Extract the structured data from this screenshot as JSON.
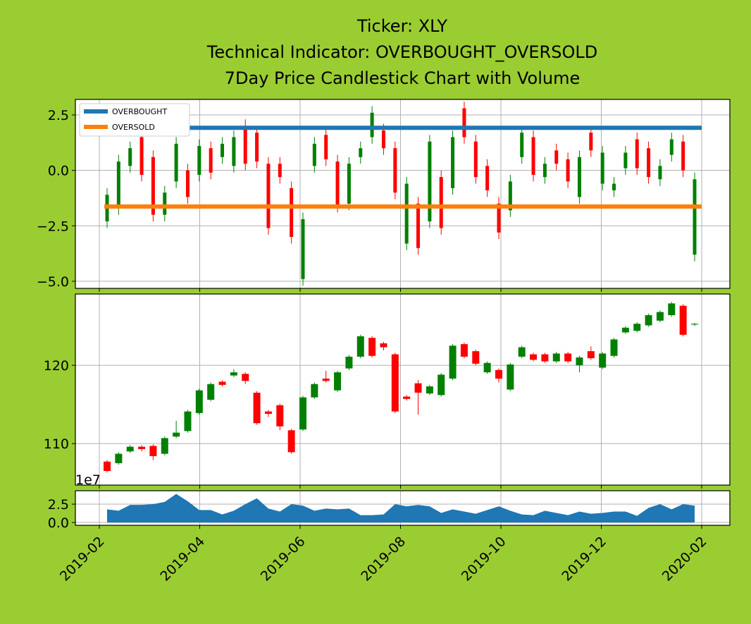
{
  "chart_data": [
    {
      "type": "candlestick",
      "title": [
        "Ticker: XLY",
        "Technical Indicator: OVERBOUGHT_OVERSOLD",
        "7Day Price Candlestick Chart with Volume"
      ],
      "open": [
        -2.3,
        -1.7,
        0.2,
        1.5,
        0.6,
        -2.0,
        -0.5,
        0.0,
        -0.2,
        1.0,
        0.6,
        0.2,
        2.0,
        1.7,
        0.3,
        0.3,
        -0.8,
        -4.9,
        0.2,
        1.6,
        0.4,
        -1.5,
        0.6,
        1.5,
        1.8,
        1.0,
        -3.3,
        -1.5,
        -2.3,
        -0.3,
        -0.8,
        2.8,
        1.3,
        0.2,
        -1.5,
        -1.8,
        0.6,
        1.5,
        -0.3,
        0.9,
        0.5,
        -1.2,
        1.7,
        -0.6,
        -0.9,
        0.1,
        1.4,
        1.0,
        -0.4,
        0.7,
        1.3,
        -3.8
      ],
      "high": [
        -0.8,
        0.7,
        1.3,
        1.8,
        0.9,
        -0.7,
        1.5,
        0.3,
        1.4,
        1.3,
        1.5,
        1.8,
        2.3,
        2.0,
        0.6,
        0.6,
        -0.5,
        -1.9,
        1.5,
        1.9,
        0.7,
        0.6,
        1.3,
        2.9,
        2.1,
        1.3,
        -0.3,
        -1.2,
        1.6,
        0.0,
        1.8,
        3.1,
        1.6,
        0.5,
        -1.2,
        -0.2,
        2.0,
        1.8,
        0.6,
        1.2,
        0.8,
        0.9,
        2.0,
        1.1,
        -0.3,
        1.1,
        1.7,
        1.3,
        0.5,
        1.7,
        1.6,
        -0.1
      ],
      "low": [
        -2.6,
        -2.0,
        -0.1,
        -0.5,
        -2.3,
        -2.3,
        -0.8,
        -1.5,
        -0.5,
        -0.4,
        0.3,
        -0.1,
        0.0,
        0.1,
        -2.9,
        -0.6,
        -3.3,
        -5.2,
        -0.1,
        0.2,
        -1.9,
        -1.8,
        0.3,
        1.2,
        0.7,
        -1.3,
        -3.6,
        -3.8,
        -2.6,
        -2.9,
        -1.1,
        1.2,
        -0.6,
        -1.2,
        -3.1,
        -2.1,
        0.3,
        -0.5,
        -0.6,
        0.0,
        -0.8,
        -1.5,
        0.6,
        -0.9,
        -1.2,
        -0.2,
        -0.2,
        -0.6,
        -0.7,
        0.4,
        -0.3,
        -4.1
      ],
      "close": [
        -1.1,
        0.4,
        1.0,
        -0.2,
        -2.0,
        -1.0,
        1.2,
        -1.2,
        1.1,
        -0.1,
        1.2,
        1.5,
        0.3,
        0.4,
        -2.6,
        -0.3,
        -3.0,
        -2.2,
        1.2,
        0.5,
        -1.6,
        0.3,
        1.0,
        2.6,
        1.0,
        -1.0,
        -0.6,
        -3.5,
        1.3,
        -2.6,
        1.5,
        1.5,
        -0.3,
        -0.9,
        -2.8,
        -0.5,
        1.7,
        -0.2,
        0.3,
        0.3,
        -0.5,
        0.6,
        0.9,
        0.8,
        -0.6,
        0.8,
        0.1,
        -0.3,
        0.2,
        1.4,
        0.0,
        -0.4
      ],
      "up_color": "green",
      "down_color": "red",
      "lines": [
        {
          "name": "OVERBOUGHT",
          "color": "#1f77b4",
          "value": 1.92
        },
        {
          "name": "OVERSOLD",
          "color": "#ff7f0e",
          "value": -1.63
        }
      ],
      "legend": "upper left",
      "ylim": [
        -5.32,
        3.2
      ],
      "yticks": [
        {
          "value": -5,
          "label": "−5.0"
        },
        {
          "value": -2.5,
          "label": "−2.5"
        },
        {
          "value": 0,
          "label": "0.0"
        },
        2.5
      ],
      "grid": true
    },
    {
      "type": "candlestick",
      "open": [
        107.7,
        107.5,
        109.0,
        109.6,
        109.7,
        108.7,
        110.9,
        111.6,
        113.9,
        115.6,
        117.9,
        118.7,
        118.9,
        116.5,
        114.1,
        114.9,
        111.7,
        111.8,
        115.9,
        118.3,
        116.8,
        119.6,
        121.1,
        123.5,
        122.8,
        121.4,
        116.0,
        117.7,
        116.4,
        116.2,
        118.3,
        122.7,
        121.8,
        119.1,
        119.4,
        116.9,
        121.1,
        121.4,
        121.4,
        120.5,
        121.5,
        120.0,
        121.8,
        119.7,
        121.2,
        124.2,
        124.4,
        125.1,
        125.7,
        126.4,
        127.6,
        125.2
      ],
      "high": [
        107.9,
        108.9,
        109.8,
        109.8,
        109.9,
        110.9,
        112.9,
        114.3,
        117.0,
        117.8,
        118.1,
        119.5,
        119.1,
        116.7,
        114.3,
        115.1,
        111.9,
        116.1,
        117.8,
        119.3,
        119.3,
        121.3,
        123.9,
        123.7,
        123.0,
        121.6,
        116.2,
        118.1,
        117.5,
        119.0,
        122.7,
        122.9,
        122.0,
        120.5,
        119.6,
        120.3,
        122.5,
        121.6,
        121.6,
        121.7,
        121.7,
        121.2,
        122.4,
        121.7,
        123.5,
        125.0,
        125.5,
        126.6,
        127.0,
        128.1,
        127.8,
        125.4
      ],
      "low": [
        106.3,
        107.3,
        108.8,
        109.0,
        107.9,
        108.5,
        110.7,
        111.4,
        113.7,
        115.4,
        117.3,
        118.5,
        117.6,
        112.4,
        113.4,
        111.7,
        108.7,
        111.6,
        115.7,
        117.8,
        116.6,
        119.4,
        120.9,
        121.0,
        121.9,
        113.9,
        115.5,
        113.7,
        116.2,
        116.0,
        118.1,
        120.9,
        120.0,
        118.9,
        117.8,
        116.7,
        120.9,
        120.5,
        120.3,
        120.3,
        120.3,
        119.1,
        120.7,
        119.5,
        121.0,
        124.0,
        124.2,
        124.9,
        125.5,
        126.2,
        123.7,
        125.0
      ],
      "close": [
        106.5,
        108.7,
        109.6,
        109.3,
        108.4,
        110.7,
        111.4,
        114.1,
        116.8,
        117.6,
        117.5,
        119.1,
        118.0,
        112.6,
        113.8,
        112.2,
        108.9,
        115.9,
        117.6,
        118.0,
        119.1,
        121.1,
        123.7,
        121.2,
        122.3,
        114.1,
        115.7,
        116.5,
        117.3,
        118.8,
        122.5,
        121.1,
        120.2,
        120.3,
        118.3,
        120.1,
        122.3,
        120.7,
        120.5,
        121.5,
        120.5,
        121.0,
        120.9,
        121.5,
        123.3,
        124.8,
        125.3,
        126.4,
        126.8,
        127.9,
        123.9,
        125.3
      ],
      "up_color": "green",
      "down_color": "red",
      "ylim": [
        104.7,
        129.1
      ],
      "yticks": [
        110,
        120
      ],
      "grid": true
    },
    {
      "type": "area",
      "values": [
        1.8,
        1.6,
        2.4,
        2.4,
        2.5,
        2.8,
        3.9,
        2.9,
        1.7,
        1.7,
        1.1,
        1.6,
        2.5,
        3.3,
        1.9,
        1.5,
        2.5,
        2.3,
        1.6,
        1.9,
        1.8,
        1.9,
        1.0,
        1.0,
        1.1,
        2.5,
        2.2,
        2.4,
        2.2,
        1.3,
        1.8,
        1.5,
        1.2,
        1.7,
        2.2,
        1.6,
        1.1,
        1.0,
        1.6,
        1.3,
        1.0,
        1.5,
        1.2,
        1.3,
        1.5,
        1.5,
        0.9,
        2.0,
        2.5,
        1.8,
        2.5,
        2.3
      ],
      "color": "#1f77b4",
      "offset_label": "1e7",
      "ylim": [
        -0.38,
        4.33
      ],
      "yticks": [
        {
          "value": 0,
          "label": "0.0"
        },
        2.5
      ],
      "xticks": [
        "2019-02",
        "2019-04",
        "2019-06",
        "2019-08",
        "2019-10",
        "2019-12",
        "2020-02"
      ],
      "grid": true
    }
  ]
}
